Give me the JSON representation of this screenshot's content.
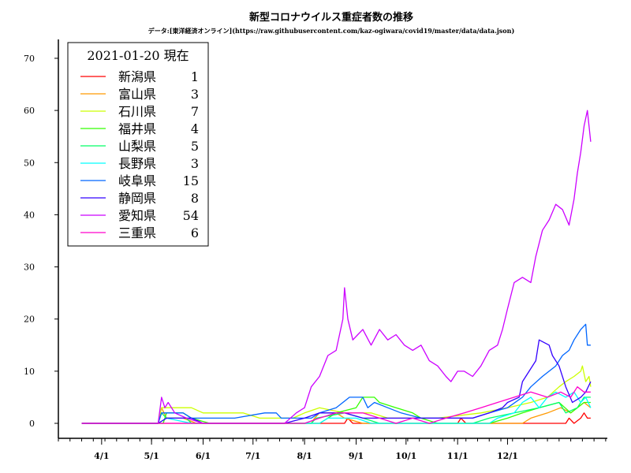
{
  "chart_data": {
    "type": "line",
    "title": "新型コロナウイルス重症者数の推移",
    "subtitle": "データ:[東洋経済オンライン](https://raw.githubusercontent.com/kaz-ogiwara/covid19/master/data/data.json)",
    "xlabel": "",
    "ylabel": "",
    "ylim": [
      0,
      75
    ],
    "yticks": [
      0,
      10,
      20,
      30,
      40,
      50,
      60,
      70
    ],
    "xlim": [
      "2020-03-06",
      "2021-01-30"
    ],
    "xticks": [
      {
        "date": "2020-04-01",
        "label": "4/1"
      },
      {
        "date": "2020-05-01",
        "label": "5/1"
      },
      {
        "date": "2020-06-01",
        "label": "6/1"
      },
      {
        "date": "2020-07-01",
        "label": "7/1"
      },
      {
        "date": "2020-08-01",
        "label": "8/1"
      },
      {
        "date": "2020-09-01",
        "label": "9/1"
      },
      {
        "date": "2020-10-01",
        "label": "10/1"
      },
      {
        "date": "2020-11-01",
        "label": "11/1"
      },
      {
        "date": "2020-12-01",
        "label": "12/1"
      }
    ],
    "grid": false,
    "legend": {
      "title": "2021-01-20 現在",
      "placement": "top-left"
    },
    "series": [
      {
        "name": "新潟県",
        "current": "1",
        "color": "#ff0000",
        "points": [
          [
            "2020-03-20",
            0
          ],
          [
            "2020-08-25",
            0
          ],
          [
            "2020-08-27",
            1
          ],
          [
            "2020-08-30",
            0
          ],
          [
            "2020-11-01",
            0
          ],
          [
            "2020-11-03",
            1
          ],
          [
            "2020-11-06",
            0
          ],
          [
            "2020-12-25",
            0
          ],
          [
            "2021-01-05",
            0
          ],
          [
            "2021-01-07",
            1
          ],
          [
            "2021-01-10",
            0
          ],
          [
            "2021-01-14",
            1
          ],
          [
            "2021-01-16",
            2
          ],
          [
            "2021-01-18",
            1
          ],
          [
            "2021-01-20",
            1
          ]
        ]
      },
      {
        "name": "富山県",
        "current": "3",
        "color": "#ff9900",
        "points": [
          [
            "2020-03-20",
            0
          ],
          [
            "2020-05-05",
            0
          ],
          [
            "2020-05-07",
            3
          ],
          [
            "2020-05-10",
            1
          ],
          [
            "2020-05-20",
            1
          ],
          [
            "2020-05-28",
            0
          ],
          [
            "2020-08-05",
            0
          ],
          [
            "2020-08-07",
            1
          ],
          [
            "2020-08-10",
            2
          ],
          [
            "2020-08-20",
            2
          ],
          [
            "2020-08-25",
            1
          ],
          [
            "2020-09-05",
            0
          ],
          [
            "2020-12-10",
            0
          ],
          [
            "2020-12-15",
            1
          ],
          [
            "2020-12-25",
            2
          ],
          [
            "2021-01-02",
            3
          ],
          [
            "2021-01-08",
            2
          ],
          [
            "2021-01-12",
            3
          ],
          [
            "2021-01-16",
            4
          ],
          [
            "2021-01-20",
            3
          ]
        ]
      },
      {
        "name": "石川県",
        "current": "7",
        "color": "#ccff00",
        "points": [
          [
            "2020-03-20",
            0
          ],
          [
            "2020-05-05",
            0
          ],
          [
            "2020-05-07",
            3
          ],
          [
            "2020-05-25",
            3
          ],
          [
            "2020-06-01",
            2
          ],
          [
            "2020-06-25",
            2
          ],
          [
            "2020-07-05",
            1
          ],
          [
            "2020-07-25",
            1
          ],
          [
            "2020-08-01",
            2
          ],
          [
            "2020-08-10",
            3
          ],
          [
            "2020-08-25",
            2
          ],
          [
            "2020-09-10",
            2
          ],
          [
            "2020-09-20",
            1
          ],
          [
            "2020-10-10",
            1
          ],
          [
            "2020-10-20",
            1
          ],
          [
            "2020-11-15",
            2
          ],
          [
            "2020-12-01",
            3
          ],
          [
            "2020-12-15",
            4
          ],
          [
            "2020-12-25",
            5
          ],
          [
            "2021-01-01",
            7
          ],
          [
            "2021-01-05",
            8
          ],
          [
            "2021-01-10",
            9
          ],
          [
            "2021-01-14",
            10
          ],
          [
            "2021-01-15",
            11
          ],
          [
            "2021-01-17",
            8
          ],
          [
            "2021-01-19",
            9
          ],
          [
            "2021-01-20",
            7
          ]
        ]
      },
      {
        "name": "福井県",
        "current": "4",
        "color": "#33ff00",
        "points": [
          [
            "2020-03-20",
            0
          ],
          [
            "2020-05-08",
            0
          ],
          [
            "2020-05-10",
            2
          ],
          [
            "2020-05-20",
            2
          ],
          [
            "2020-05-25",
            1
          ],
          [
            "2020-06-05",
            0
          ],
          [
            "2020-08-10",
            0
          ],
          [
            "2020-08-20",
            2
          ],
          [
            "2020-09-01",
            3
          ],
          [
            "2020-09-05",
            5
          ],
          [
            "2020-09-12",
            5
          ],
          [
            "2020-09-15",
            4
          ],
          [
            "2020-09-25",
            3
          ],
          [
            "2020-10-05",
            2
          ],
          [
            "2020-10-10",
            1
          ],
          [
            "2020-10-20",
            0
          ],
          [
            "2020-11-20",
            0
          ],
          [
            "2020-12-01",
            1
          ],
          [
            "2020-12-10",
            2
          ],
          [
            "2020-12-20",
            3
          ],
          [
            "2021-01-01",
            4
          ],
          [
            "2021-01-08",
            2
          ],
          [
            "2021-01-12",
            3
          ],
          [
            "2021-01-16",
            4
          ],
          [
            "2021-01-20",
            4
          ]
        ]
      },
      {
        "name": "山梨県",
        "current": "5",
        "color": "#00ff66",
        "points": [
          [
            "2020-03-20",
            0
          ],
          [
            "2020-05-05",
            0
          ],
          [
            "2020-05-07",
            2
          ],
          [
            "2020-05-10",
            1
          ],
          [
            "2020-05-22",
            1
          ],
          [
            "2020-05-25",
            0
          ],
          [
            "2020-08-05",
            0
          ],
          [
            "2020-08-08",
            1
          ],
          [
            "2020-08-25",
            2
          ],
          [
            "2020-09-05",
            1
          ],
          [
            "2020-09-15",
            0
          ],
          [
            "2020-11-10",
            0
          ],
          [
            "2020-11-20",
            1
          ],
          [
            "2020-12-05",
            2
          ],
          [
            "2020-12-20",
            3
          ],
          [
            "2021-01-01",
            4
          ],
          [
            "2021-01-05",
            2
          ],
          [
            "2021-01-12",
            3
          ],
          [
            "2021-01-16",
            5
          ],
          [
            "2021-01-20",
            5
          ]
        ]
      },
      {
        "name": "長野県",
        "current": "3",
        "color": "#00ffff",
        "points": [
          [
            "2020-03-20",
            0
          ],
          [
            "2020-05-05",
            0
          ],
          [
            "2020-05-10",
            1
          ],
          [
            "2020-05-25",
            0
          ],
          [
            "2020-08-10",
            0
          ],
          [
            "2020-08-15",
            1
          ],
          [
            "2020-09-01",
            1
          ],
          [
            "2020-09-10",
            0
          ],
          [
            "2020-11-20",
            0
          ],
          [
            "2020-11-25",
            1
          ],
          [
            "2020-12-05",
            2
          ],
          [
            "2020-12-10",
            4
          ],
          [
            "2020-12-15",
            5
          ],
          [
            "2020-12-20",
            3
          ],
          [
            "2020-12-25",
            5
          ],
          [
            "2020-12-30",
            6
          ],
          [
            "2021-01-05",
            5
          ],
          [
            "2021-01-10",
            6
          ],
          [
            "2021-01-14",
            4
          ],
          [
            "2021-01-17",
            5
          ],
          [
            "2021-01-20",
            3
          ]
        ]
      },
      {
        "name": "岐阜県",
        "current": "15",
        "color": "#0066ff",
        "points": [
          [
            "2020-03-20",
            0
          ],
          [
            "2020-05-05",
            0
          ],
          [
            "2020-05-07",
            2
          ],
          [
            "2020-05-20",
            2
          ],
          [
            "2020-05-25",
            1
          ],
          [
            "2020-06-20",
            1
          ],
          [
            "2020-07-08",
            2
          ],
          [
            "2020-07-15",
            2
          ],
          [
            "2020-07-18",
            1
          ],
          [
            "2020-08-05",
            1
          ],
          [
            "2020-08-10",
            2
          ],
          [
            "2020-08-20",
            3
          ],
          [
            "2020-08-28",
            5
          ],
          [
            "2020-09-05",
            5
          ],
          [
            "2020-09-08",
            3
          ],
          [
            "2020-09-12",
            4
          ],
          [
            "2020-09-20",
            3
          ],
          [
            "2020-09-28",
            2
          ],
          [
            "2020-10-10",
            1
          ],
          [
            "2020-11-10",
            1
          ],
          [
            "2020-11-20",
            2
          ],
          [
            "2020-12-01",
            3
          ],
          [
            "2020-12-10",
            5
          ],
          [
            "2020-12-15",
            7
          ],
          [
            "2020-12-22",
            9
          ],
          [
            "2020-12-30",
            11
          ],
          [
            "2021-01-03",
            13
          ],
          [
            "2021-01-07",
            14
          ],
          [
            "2021-01-10",
            16
          ],
          [
            "2021-01-14",
            18
          ],
          [
            "2021-01-17",
            19
          ],
          [
            "2021-01-18",
            15
          ],
          [
            "2021-01-20",
            15
          ]
        ]
      },
      {
        "name": "静岡県",
        "current": "8",
        "color": "#3300ff",
        "points": [
          [
            "2020-03-20",
            0
          ],
          [
            "2020-05-05",
            0
          ],
          [
            "2020-05-10",
            1
          ],
          [
            "2020-05-25",
            1
          ],
          [
            "2020-06-01",
            0
          ],
          [
            "2020-07-20",
            0
          ],
          [
            "2020-08-01",
            1
          ],
          [
            "2020-08-10",
            2
          ],
          [
            "2020-08-25",
            2
          ],
          [
            "2020-09-05",
            1
          ],
          [
            "2020-11-10",
            1
          ],
          [
            "2020-11-20",
            2
          ],
          [
            "2020-11-28",
            3
          ],
          [
            "2020-12-01",
            4
          ],
          [
            "2020-12-08",
            5
          ],
          [
            "2020-12-10",
            8
          ],
          [
            "2020-12-18",
            12
          ],
          [
            "2020-12-20",
            16
          ],
          [
            "2020-12-26",
            15
          ],
          [
            "2020-12-28",
            13
          ],
          [
            "2021-01-01",
            11
          ],
          [
            "2021-01-05",
            7
          ],
          [
            "2021-01-09",
            4
          ],
          [
            "2021-01-14",
            5
          ],
          [
            "2021-01-17",
            6
          ],
          [
            "2021-01-20",
            8
          ]
        ]
      },
      {
        "name": "愛知県",
        "current": "54",
        "color": "#cc00ff",
        "points": [
          [
            "2020-03-20",
            0
          ],
          [
            "2020-05-05",
            0
          ],
          [
            "2020-05-07",
            5
          ],
          [
            "2020-05-09",
            3
          ],
          [
            "2020-05-11",
            4
          ],
          [
            "2020-05-15",
            2
          ],
          [
            "2020-05-22",
            1
          ],
          [
            "2020-06-01",
            0
          ],
          [
            "2020-07-20",
            0
          ],
          [
            "2020-07-27",
            2
          ],
          [
            "2020-08-01",
            3
          ],
          [
            "2020-08-05",
            7
          ],
          [
            "2020-08-10",
            9
          ],
          [
            "2020-08-15",
            13
          ],
          [
            "2020-08-20",
            14
          ],
          [
            "2020-08-24",
            20
          ],
          [
            "2020-08-25",
            26
          ],
          [
            "2020-08-27",
            20
          ],
          [
            "2020-08-30",
            16
          ],
          [
            "2020-09-02",
            17
          ],
          [
            "2020-09-05",
            18
          ],
          [
            "2020-09-10",
            15
          ],
          [
            "2020-09-15",
            18
          ],
          [
            "2020-09-20",
            16
          ],
          [
            "2020-09-25",
            17
          ],
          [
            "2020-09-30",
            15
          ],
          [
            "2020-10-05",
            14
          ],
          [
            "2020-10-10",
            15
          ],
          [
            "2020-10-15",
            12
          ],
          [
            "2020-10-20",
            11
          ],
          [
            "2020-10-25",
            9
          ],
          [
            "2020-10-28",
            8
          ],
          [
            "2020-11-01",
            10
          ],
          [
            "2020-11-05",
            10
          ],
          [
            "2020-11-10",
            9
          ],
          [
            "2020-11-15",
            11
          ],
          [
            "2020-11-20",
            14
          ],
          [
            "2020-11-25",
            15
          ],
          [
            "2020-11-28",
            18
          ],
          [
            "2020-12-01",
            22
          ],
          [
            "2020-12-05",
            27
          ],
          [
            "2020-12-10",
            28
          ],
          [
            "2020-12-15",
            27
          ],
          [
            "2020-12-18",
            32
          ],
          [
            "2020-12-22",
            37
          ],
          [
            "2020-12-26",
            39
          ],
          [
            "2020-12-30",
            42
          ],
          [
            "2021-01-03",
            41
          ],
          [
            "2021-01-07",
            38
          ],
          [
            "2021-01-10",
            43
          ],
          [
            "2021-01-12",
            48
          ],
          [
            "2021-01-14",
            52
          ],
          [
            "2021-01-16",
            57
          ],
          [
            "2021-01-18",
            60
          ],
          [
            "2021-01-19",
            57
          ],
          [
            "2021-01-20",
            54
          ]
        ]
      },
      {
        "name": "三重県",
        "current": "6",
        "color": "#ff00cc",
        "points": [
          [
            "2020-03-20",
            0
          ],
          [
            "2020-08-01",
            0
          ],
          [
            "2020-08-10",
            1
          ],
          [
            "2020-08-20",
            2
          ],
          [
            "2020-09-05",
            2
          ],
          [
            "2020-09-15",
            1
          ],
          [
            "2020-09-25",
            0
          ],
          [
            "2020-10-05",
            1
          ],
          [
            "2020-10-15",
            0
          ],
          [
            "2020-10-25",
            1
          ],
          [
            "2020-11-05",
            2
          ],
          [
            "2020-11-15",
            3
          ],
          [
            "2020-11-25",
            4
          ],
          [
            "2020-12-05",
            5
          ],
          [
            "2020-12-15",
            6
          ],
          [
            "2020-12-25",
            5
          ],
          [
            "2021-01-02",
            6
          ],
          [
            "2021-01-08",
            5
          ],
          [
            "2021-01-12",
            7
          ],
          [
            "2021-01-16",
            6
          ],
          [
            "2021-01-20",
            6
          ]
        ]
      }
    ]
  }
}
